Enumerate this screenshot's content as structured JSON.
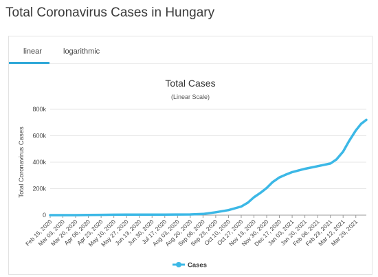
{
  "page": {
    "title": "Total Coronavirus Cases in Hungary"
  },
  "tabs": [
    {
      "label": "linear",
      "active": true
    },
    {
      "label": "logarithmic",
      "active": false
    }
  ],
  "colors": {
    "accent": "#2fa8d8",
    "series": "#3cb8e6",
    "grid": "#e6e6e6",
    "axis": "#555555"
  },
  "chart_data": {
    "type": "line",
    "title": "Total Cases",
    "subtitle": "(Linear Scale)",
    "ylabel": "Total Coronavirus Cases",
    "xlabel": "",
    "ylim": [
      0,
      800000
    ],
    "y_ticks": [
      0,
      200000,
      400000,
      600000,
      800000
    ],
    "y_tick_labels": [
      "0",
      "200k",
      "400k",
      "600k",
      "800k"
    ],
    "x_tick_labels": [
      "Feb 15, 2020",
      "Mar 03, 2020",
      "Mar 20, 2020",
      "Apr 06, 2020",
      "Apr 23, 2020",
      "May 10, 2020",
      "May 27, 2020",
      "Jun 13, 2020",
      "Jun 30, 2020",
      "Jul 17, 2020",
      "Aug 03, 2020",
      "Aug 20, 2020",
      "Sep 06, 2020",
      "Sep 23, 2020",
      "Oct 10, 2020",
      "Oct 27, 2020",
      "Nov 13, 2020",
      "Nov 30, 2020",
      "Dec 17, 2020",
      "Jan 03, 2021",
      "Jan 20, 2021",
      "Feb 06, 2021",
      "Feb 23, 2021",
      "Mar 12, 2021",
      "Mar 29, 2021"
    ],
    "grid": true,
    "legend": "bottom-center",
    "series": [
      {
        "name": "Cases",
        "x": [
          "Feb 15, 2020",
          "Mar 03, 2020",
          "Mar 20, 2020",
          "Apr 06, 2020",
          "Apr 23, 2020",
          "May 10, 2020",
          "May 27, 2020",
          "Jun 13, 2020",
          "Jun 30, 2020",
          "Jul 17, 2020",
          "Aug 03, 2020",
          "Aug 20, 2020",
          "Sep 06, 2020",
          "Sep 23, 2020",
          "Oct 10, 2020",
          "Oct 27, 2020",
          "Nov 05, 2020",
          "Nov 13, 2020",
          "Nov 22, 2020",
          "Nov 30, 2020",
          "Dec 08, 2020",
          "Dec 17, 2020",
          "Dec 25, 2020",
          "Jan 03, 2021",
          "Jan 20, 2021",
          "Feb 06, 2021",
          "Feb 23, 2021",
          "Mar 03, 2021",
          "Mar 12, 2021",
          "Mar 20, 2021",
          "Mar 29, 2021",
          "Apr 05, 2021",
          "Apr 12, 2021"
        ],
        "values": [
          0,
          0,
          100,
          1000,
          2300,
          3300,
          3800,
          4100,
          4200,
          4400,
          4600,
          5100,
          9000,
          22000,
          38000,
          65000,
          95000,
          135000,
          170000,
          205000,
          250000,
          285000,
          305000,
          325000,
          350000,
          370000,
          390000,
          420000,
          480000,
          560000,
          640000,
          690000,
          720000
        ]
      }
    ]
  }
}
